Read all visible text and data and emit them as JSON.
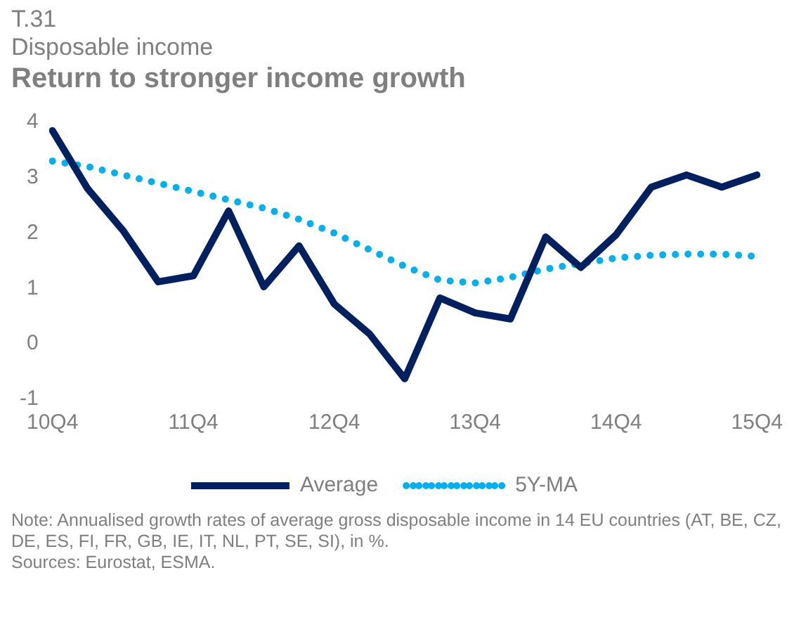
{
  "chart_data": {
    "type": "line",
    "title": "Return to stronger income growth",
    "subtitle": "Disposable income",
    "annotations": [
      "T.31",
      "Note: Annualised growth rates of average gross disposable income in 14 EU countries (AT, BE, CZ, DE, ES, FI, FR, GB, IE, IT, NL, PT, SE, SI), in %.",
      "Sources: Eurostat, ESMA."
    ],
    "categories": [
      "10Q4",
      null,
      null,
      null,
      "11Q4",
      null,
      null,
      null,
      "12Q4",
      null,
      null,
      null,
      "13Q4",
      null,
      null,
      null,
      "14Q4",
      null,
      null,
      null,
      "15Q4"
    ],
    "series": [
      {
        "name": "Average",
        "color": "#002060",
        "line_style": "solid",
        "values": [
          3.85,
          2.8,
          2.05,
          1.12,
          1.23,
          2.4,
          1.03,
          1.77,
          0.72,
          0.18,
          -0.63,
          0.83,
          0.56,
          0.45,
          1.93,
          1.38,
          1.97,
          2.83,
          3.05,
          2.83,
          3.05
        ]
      },
      {
        "name": "5Y-MA",
        "color": "#00b0f0",
        "line_style": "dotted",
        "values": [
          3.3,
          3.2,
          3.05,
          2.9,
          2.75,
          2.6,
          2.45,
          2.25,
          2.0,
          1.7,
          1.4,
          1.15,
          1.1,
          1.2,
          1.35,
          1.45,
          1.55,
          1.6,
          1.62,
          1.62,
          1.58
        ]
      }
    ],
    "ylim": [
      -1,
      4
    ],
    "yticks": [
      -1,
      0,
      1,
      2,
      3,
      4
    ],
    "grid": false,
    "legend": "bottom",
    "marker": "none"
  }
}
